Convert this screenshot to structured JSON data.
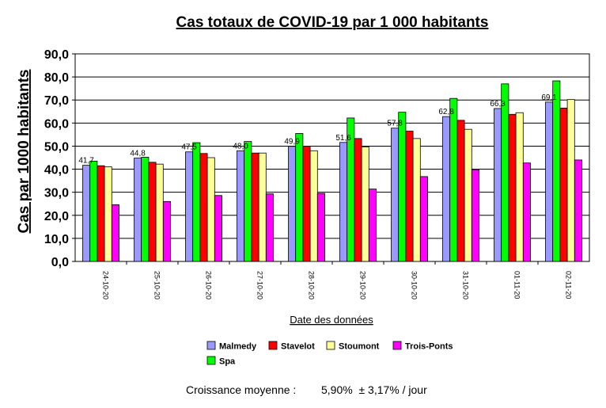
{
  "chart_data": {
    "type": "bar",
    "title": "Cas totaux de COVID-19 par 1 000 habitants",
    "xlabel": "Date des données",
    "ylabel": "Cas par 1000 habitants",
    "ylim": [
      0,
      90
    ],
    "ytick_step": 10,
    "ytick_labels": [
      "0,0",
      "10,0",
      "20,0",
      "30,0",
      "40,0",
      "50,0",
      "60,0",
      "70,0",
      "80,0",
      "90,0"
    ],
    "grid": true,
    "legend_position": "bottom",
    "categories": [
      "24-10-20",
      "25-10-20",
      "26-10-20",
      "27-10-20",
      "28-10-20",
      "29-10-20",
      "30-10-20",
      "31-10-20",
      "01-11-20",
      "02-11-20"
    ],
    "series": [
      {
        "name": "Malmedy",
        "color": "#9999ff",
        "values": [
          41.7,
          44.8,
          47.5,
          48.0,
          49.9,
          51.6,
          57.8,
          62.8,
          66.3,
          69.1
        ]
      },
      {
        "name": "Spa",
        "color": "#00ff00",
        "values": [
          43.5,
          45.2,
          51.5,
          52.0,
          55.5,
          62.2,
          64.7,
          70.7,
          77.0,
          78.3
        ]
      },
      {
        "name": "Stavelot",
        "color": "#ff0000",
        "values": [
          41.5,
          43.0,
          46.8,
          47.0,
          50.0,
          53.3,
          56.5,
          61.2,
          63.8,
          66.5
        ]
      },
      {
        "name": "Stoumont",
        "color": "#ffff99",
        "values": [
          41.0,
          42.2,
          45.0,
          47.0,
          48.0,
          49.7,
          53.3,
          57.3,
          64.5,
          70.2
        ]
      },
      {
        "name": "Trois-Ponts",
        "color": "#ff00ff",
        "values": [
          24.6,
          26.0,
          28.6,
          29.3,
          29.5,
          31.4,
          36.8,
          39.8,
          42.7,
          44.0
        ]
      }
    ],
    "data_labels": {
      "series": "Malmedy",
      "labels": [
        "41,7",
        "44,8",
        "47,5",
        "48,0",
        "49,9",
        "51,6",
        "57,8",
        "62,8",
        "66,3",
        "69,1"
      ]
    },
    "legend_order": [
      "Malmedy",
      "Stavelot",
      "Stoumont",
      "Trois-Ponts",
      "Spa"
    ]
  },
  "footer": {
    "label": "Croissance moyenne :",
    "value": "5,90%  ± 3,17% / jour"
  }
}
